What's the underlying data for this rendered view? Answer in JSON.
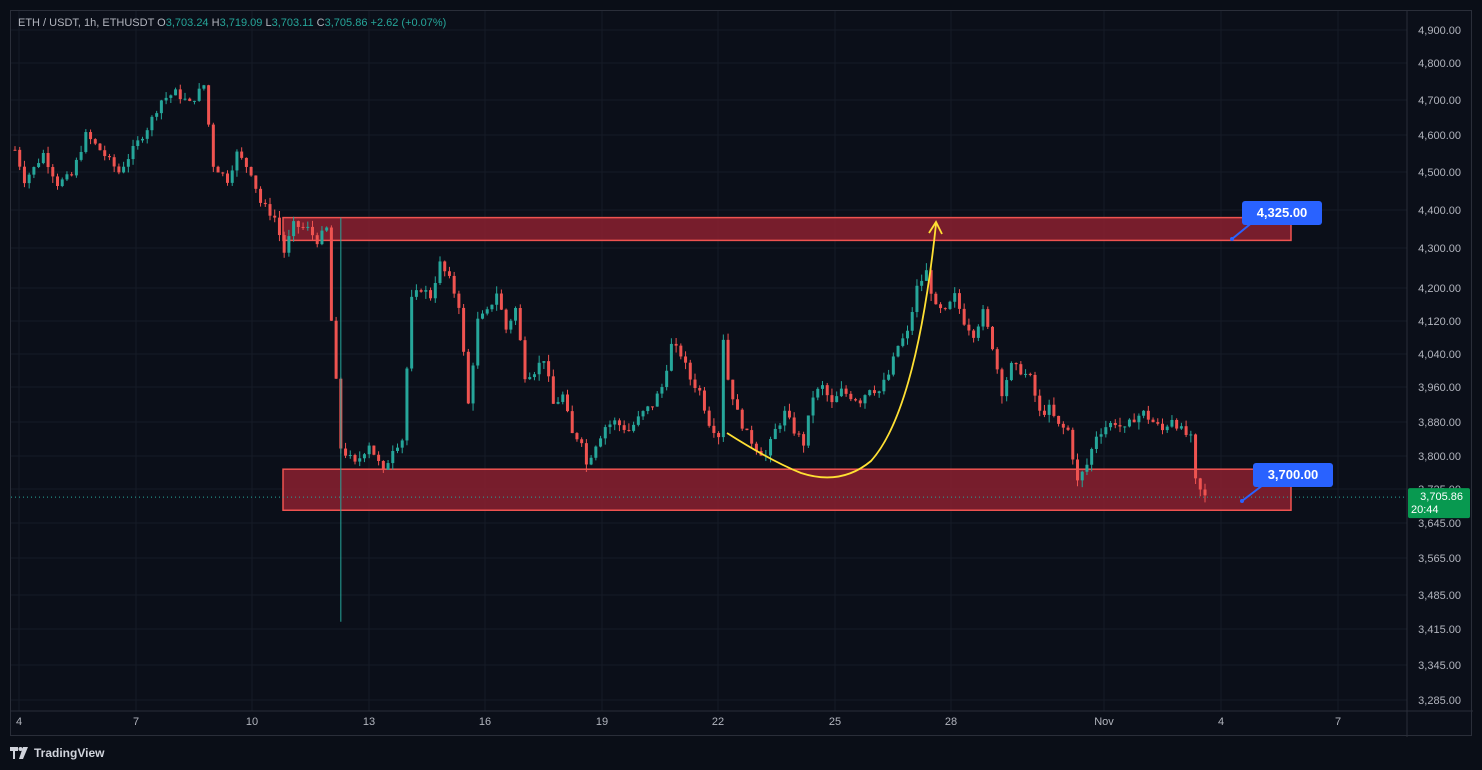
{
  "legend": {
    "symbol": "ETH / USDT, 1h, ETHUSDT",
    "o_label": "O",
    "o_value": "3,703.24",
    "h_label": "H",
    "h_value": "3,719.09",
    "l_label": "L",
    "l_value": "3,703.11",
    "c_label": "C",
    "c_value": "3,705.86",
    "change": "+2.62 (+0.07%)"
  },
  "price_axis": {
    "ticks": [
      "4,900.00",
      "4,800.00",
      "4,700.00",
      "4,600.00",
      "4,500.00",
      "4,400.00",
      "4,300.00",
      "4,200.00",
      "4,120.00",
      "4,040.00",
      "3,960.00",
      "3,880.00",
      "3,800.00",
      "3,725.00",
      "3,645.00",
      "3,565.00",
      "3,485.00",
      "3,415.00",
      "3,345.00",
      "3,285.00"
    ],
    "current_price": "3,705.86",
    "countdown": "20:44"
  },
  "time_axis": {
    "ticks": [
      "4",
      "7",
      "10",
      "13",
      "16",
      "19",
      "22",
      "25",
      "28",
      "Nov",
      "4",
      "7"
    ]
  },
  "zones": [
    {
      "name": "resistance",
      "top": 4380,
      "bottom": 4320,
      "callout": "4,325.00"
    },
    {
      "name": "support",
      "top": 3770,
      "bottom": 3675,
      "callout": "3,700.00"
    }
  ],
  "colors": {
    "up": "#26a69a",
    "down": "#ef5350",
    "zone_fill": "#8b2030",
    "zone_border": "#ef5350",
    "callout": "#2962ff",
    "arrow": "#ffe033",
    "price_tag": "#089950"
  },
  "chart_data": {
    "type": "candlestick",
    "x": [
      "4",
      "7",
      "10",
      "13",
      "16",
      "19",
      "22",
      "25",
      "28",
      "Nov",
      "4",
      "7"
    ],
    "series": [
      {
        "path": [
          [
            0,
            4560
          ],
          [
            2,
            4480
          ],
          [
            4,
            4510
          ],
          [
            6,
            4550
          ],
          [
            9,
            4470
          ],
          [
            12,
            4490
          ],
          [
            15,
            4600
          ],
          [
            18,
            4560
          ],
          [
            22,
            4500
          ],
          [
            25,
            4560
          ],
          [
            28,
            4620
          ],
          [
            31,
            4700
          ],
          [
            34,
            4720
          ],
          [
            37,
            4690
          ],
          [
            40,
            4740
          ],
          [
            42,
            4520
          ],
          [
            45,
            4480
          ],
          [
            47,
            4550
          ],
          [
            50,
            4500
          ],
          [
            52,
            4420
          ],
          [
            55,
            4380
          ],
          [
            57,
            4290
          ],
          [
            59,
            4360
          ],
          [
            62,
            4350
          ],
          [
            64,
            4320
          ],
          [
            66,
            4350
          ],
          [
            67,
            4120
          ],
          [
            69,
            3820
          ],
          [
            72,
            3780
          ],
          [
            75,
            3830
          ],
          [
            78,
            3760
          ],
          [
            80,
            3820
          ],
          [
            82,
            3840
          ],
          [
            84,
            4170
          ],
          [
            86,
            4200
          ],
          [
            88,
            4180
          ],
          [
            90,
            4260
          ],
          [
            92,
            4220
          ],
          [
            94,
            4160
          ],
          [
            96,
            3920
          ],
          [
            98,
            4120
          ],
          [
            100,
            4140
          ],
          [
            102,
            4190
          ],
          [
            104,
            4100
          ],
          [
            106,
            4150
          ],
          [
            108,
            3990
          ],
          [
            110,
            4000
          ],
          [
            112,
            4030
          ],
          [
            114,
            3920
          ],
          [
            116,
            3940
          ],
          [
            118,
            3850
          ],
          [
            120,
            3840
          ],
          [
            121,
            3780
          ],
          [
            123,
            3830
          ],
          [
            125,
            3870
          ],
          [
            127,
            3880
          ],
          [
            130,
            3860
          ],
          [
            133,
            3900
          ],
          [
            135,
            3920
          ],
          [
            137,
            3960
          ],
          [
            139,
            4060
          ],
          [
            141,
            4040
          ],
          [
            143,
            3980
          ],
          [
            145,
            3950
          ],
          [
            147,
            3880
          ],
          [
            149,
            3850
          ],
          [
            150,
            4080
          ],
          [
            151,
            3980
          ],
          [
            153,
            3900
          ],
          [
            155,
            3850
          ],
          [
            157,
            3820
          ],
          [
            159,
            3800
          ],
          [
            161,
            3860
          ],
          [
            163,
            3900
          ],
          [
            165,
            3860
          ],
          [
            167,
            3830
          ],
          [
            169,
            3940
          ],
          [
            171,
            3960
          ],
          [
            173,
            3920
          ],
          [
            175,
            3950
          ],
          [
            177,
            3940
          ],
          [
            179,
            3930
          ],
          [
            181,
            3960
          ],
          [
            183,
            3950
          ],
          [
            185,
            3990
          ],
          [
            187,
            4060
          ],
          [
            189,
            4090
          ],
          [
            191,
            4200
          ],
          [
            193,
            4240
          ],
          [
            195,
            4150
          ],
          [
            197,
            4140
          ],
          [
            199,
            4180
          ],
          [
            201,
            4120
          ],
          [
            203,
            4090
          ],
          [
            205,
            4140
          ],
          [
            207,
            4060
          ],
          [
            209,
            3950
          ],
          [
            211,
            4010
          ],
          [
            213,
            4000
          ],
          [
            215,
            3980
          ],
          [
            217,
            3900
          ],
          [
            219,
            3910
          ],
          [
            221,
            3870
          ],
          [
            223,
            3860
          ],
          [
            225,
            3740
          ],
          [
            227,
            3780
          ],
          [
            229,
            3850
          ],
          [
            231,
            3870
          ],
          [
            233,
            3880
          ],
          [
            235,
            3860
          ],
          [
            237,
            3890
          ],
          [
            239,
            3900
          ],
          [
            241,
            3880
          ],
          [
            243,
            3860
          ],
          [
            245,
            3890
          ],
          [
            247,
            3860
          ],
          [
            249,
            3840
          ],
          [
            250,
            3740
          ],
          [
            251,
            3720
          ],
          [
            252,
            3706
          ]
        ]
      }
    ],
    "ylim": [
      3260,
      4940
    ]
  },
  "annotations": {
    "curve_note": "",
    "brand": "TradingView"
  }
}
